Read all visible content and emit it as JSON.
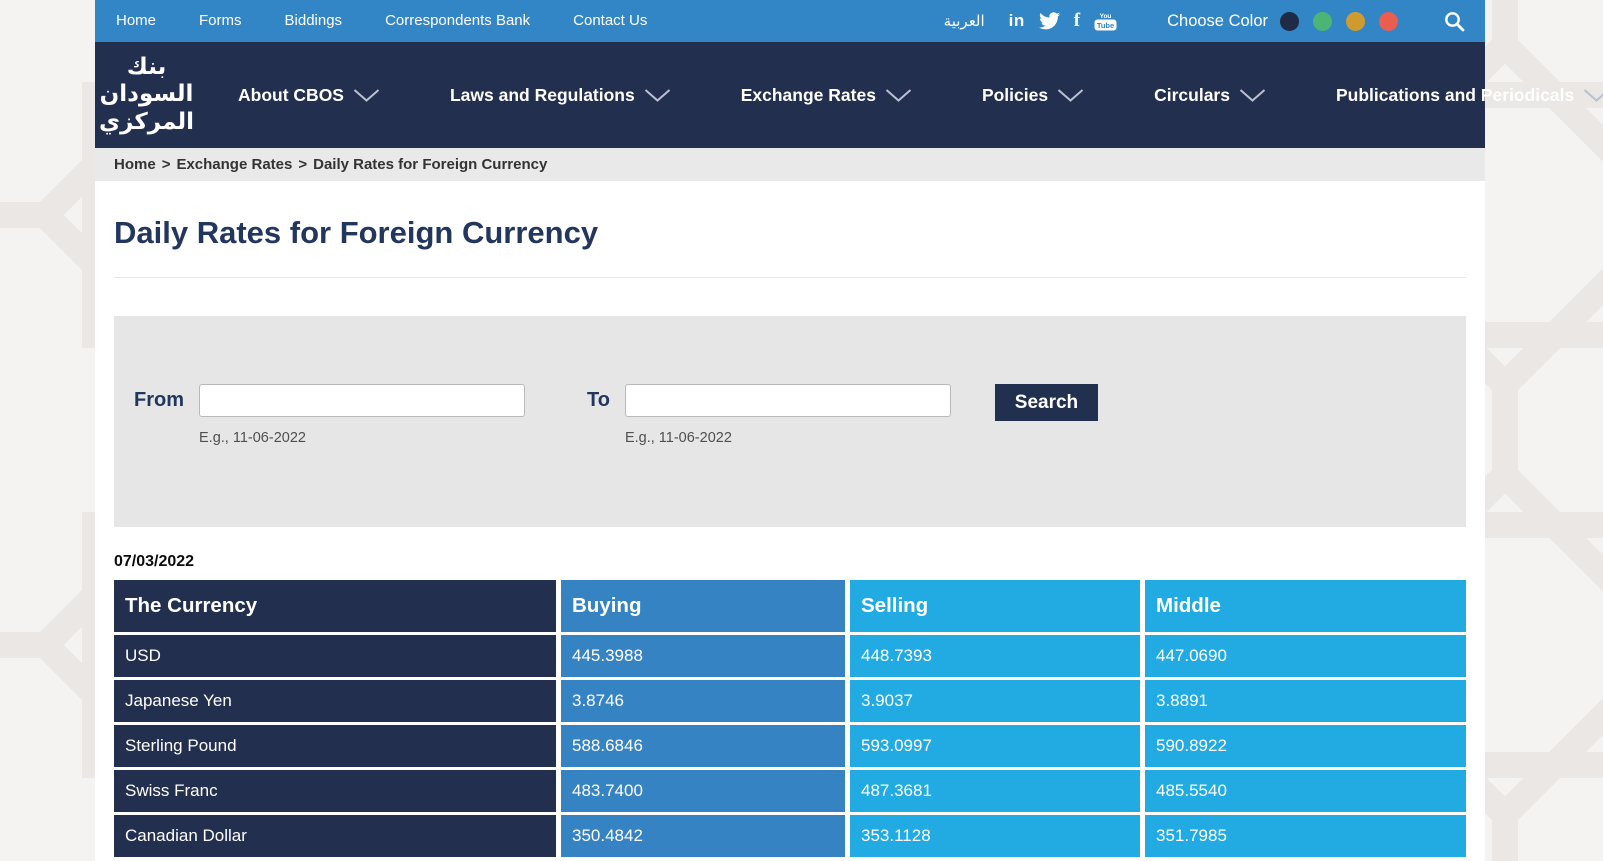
{
  "topbar": {
    "links": [
      "Home",
      "Forms",
      "Biddings",
      "Correspondents Bank",
      "Contact Us"
    ],
    "language_link": "العربية",
    "social_icons": [
      "linkedin-icon",
      "twitter-icon",
      "facebook-icon",
      "youtube-icon"
    ],
    "choose_color_label": "Choose Color",
    "color_swatches": [
      "#1f2b44",
      "#4cb575",
      "#cf9b2e",
      "#e95e4f"
    ],
    "linkedin_glyph": "in",
    "facebook_glyph": "f"
  },
  "navbar": {
    "logo_text": "بنك السودان المركزي",
    "items": [
      {
        "label": "About CBOS"
      },
      {
        "label": "Laws and Regulations"
      },
      {
        "label": "Exchange Rates"
      },
      {
        "label": "Policies"
      },
      {
        "label": "Circulars"
      },
      {
        "label": "Publications and Periodicals"
      }
    ]
  },
  "breadcrumb": {
    "parts": [
      "Home",
      "Exchange Rates",
      "Daily Rates for Foreign Currency"
    ],
    "separator": ">"
  },
  "page": {
    "title": "Daily Rates for Foreign Currency"
  },
  "filter": {
    "from_label": "From",
    "to_label": "To",
    "from_value": "",
    "to_value": "",
    "from_hint": "E.g., 11-06-2022",
    "to_hint": "E.g., 11-06-2022",
    "search_label": "Search"
  },
  "rates": {
    "date": "07/03/2022",
    "columns": [
      "The Currency",
      "Buying",
      "Selling",
      "Middle"
    ],
    "rows": [
      {
        "currency": "USD",
        "buying": "445.3988",
        "selling": "448.7393",
        "middle": "447.0690"
      },
      {
        "currency": "Japanese Yen",
        "buying": "3.8746",
        "selling": "3.9037",
        "middle": "3.8891"
      },
      {
        "currency": "Sterling Pound",
        "buying": "588.6846",
        "selling": "593.0997",
        "middle": "590.8922"
      },
      {
        "currency": "Swiss Franc",
        "buying": "483.7400",
        "selling": "487.3681",
        "middle": "485.5540"
      },
      {
        "currency": "Canadian Dollar",
        "buying": "350.4842",
        "selling": "353.1128",
        "middle": "351.7985"
      }
    ]
  },
  "colors": {
    "topbar_blue": "#3286c6",
    "navy": "#232f4e",
    "buying_column_blue": "#3583c3",
    "selling_middle_cyan": "#22abe2",
    "breadcrumb_bg": "#e9e9e9",
    "title_navy": "#22365e"
  }
}
